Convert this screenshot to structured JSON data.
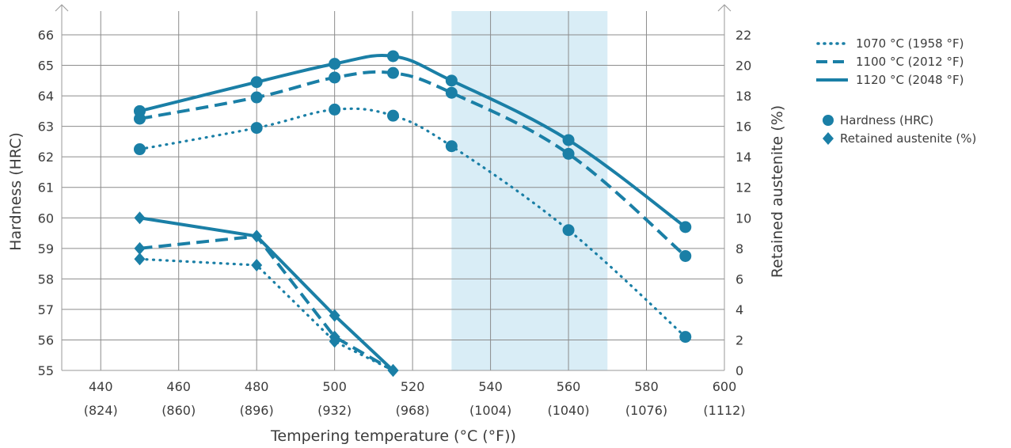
{
  "chart_data": {
    "type": "line",
    "xlabel": "Tempering temperature (°C (°F))",
    "ylabel": "Hardness (HRC)",
    "y2label": "Retained austenite (%)",
    "x_ticks": [
      440,
      460,
      480,
      500,
      520,
      540,
      560,
      580,
      600
    ],
    "x_ticks_f": [
      "(824)",
      "(860)",
      "(896)",
      "(932)",
      "(968)",
      "(1004)",
      "(1040)",
      "(1076)",
      "(1112)"
    ],
    "xlim": [
      430,
      600
    ],
    "ylim": [
      55,
      66
    ],
    "y_ticks": [
      55,
      56,
      57,
      58,
      59,
      60,
      61,
      62,
      63,
      64,
      65,
      66
    ],
    "y2lim": [
      0,
      22
    ],
    "y2_ticks": [
      0,
      2,
      4,
      6,
      8,
      10,
      12,
      14,
      16,
      18,
      20,
      22
    ],
    "highlight_band": [
      530,
      570
    ],
    "grid": true,
    "legend_position": "right",
    "colors": {
      "series": "#1a7fa6",
      "band": "#d9edf6",
      "grid": "#8c8c8c",
      "text": "#3c3c3c"
    },
    "series": [
      {
        "name": "1070 °C (1958 °F)",
        "style": "dotted",
        "hardness": {
          "x": [
            450,
            480,
            500,
            515,
            530,
            560,
            590
          ],
          "y": [
            62.25,
            62.95,
            63.55,
            63.35,
            62.35,
            59.6,
            56.1
          ]
        },
        "austenite": {
          "x": [
            450,
            480,
            500,
            515
          ],
          "y": [
            7.3,
            6.9,
            1.9,
            0
          ]
        }
      },
      {
        "name": "1100 °C (2012 °F)",
        "style": "dashed",
        "hardness": {
          "x": [
            450,
            480,
            500,
            515,
            530,
            560,
            590
          ],
          "y": [
            63.25,
            63.95,
            64.6,
            64.75,
            64.1,
            62.1,
            58.75
          ]
        },
        "austenite": {
          "x": [
            450,
            480,
            500,
            515
          ],
          "y": [
            8.0,
            8.8,
            2.2,
            0
          ]
        }
      },
      {
        "name": "1120 °C (2048 °F)",
        "style": "solid",
        "hardness": {
          "x": [
            450,
            480,
            500,
            515,
            530,
            560,
            590
          ],
          "y": [
            63.5,
            64.45,
            65.05,
            65.3,
            64.5,
            62.55,
            59.7
          ]
        },
        "austenite": {
          "x": [
            450,
            480,
            500,
            515
          ],
          "y": [
            10.0,
            8.8,
            3.6,
            0
          ]
        }
      }
    ],
    "marker_legend": [
      {
        "marker": "circle",
        "label": "Hardness (HRC)"
      },
      {
        "marker": "diamond",
        "label": "Retained austenite (%)"
      }
    ]
  }
}
